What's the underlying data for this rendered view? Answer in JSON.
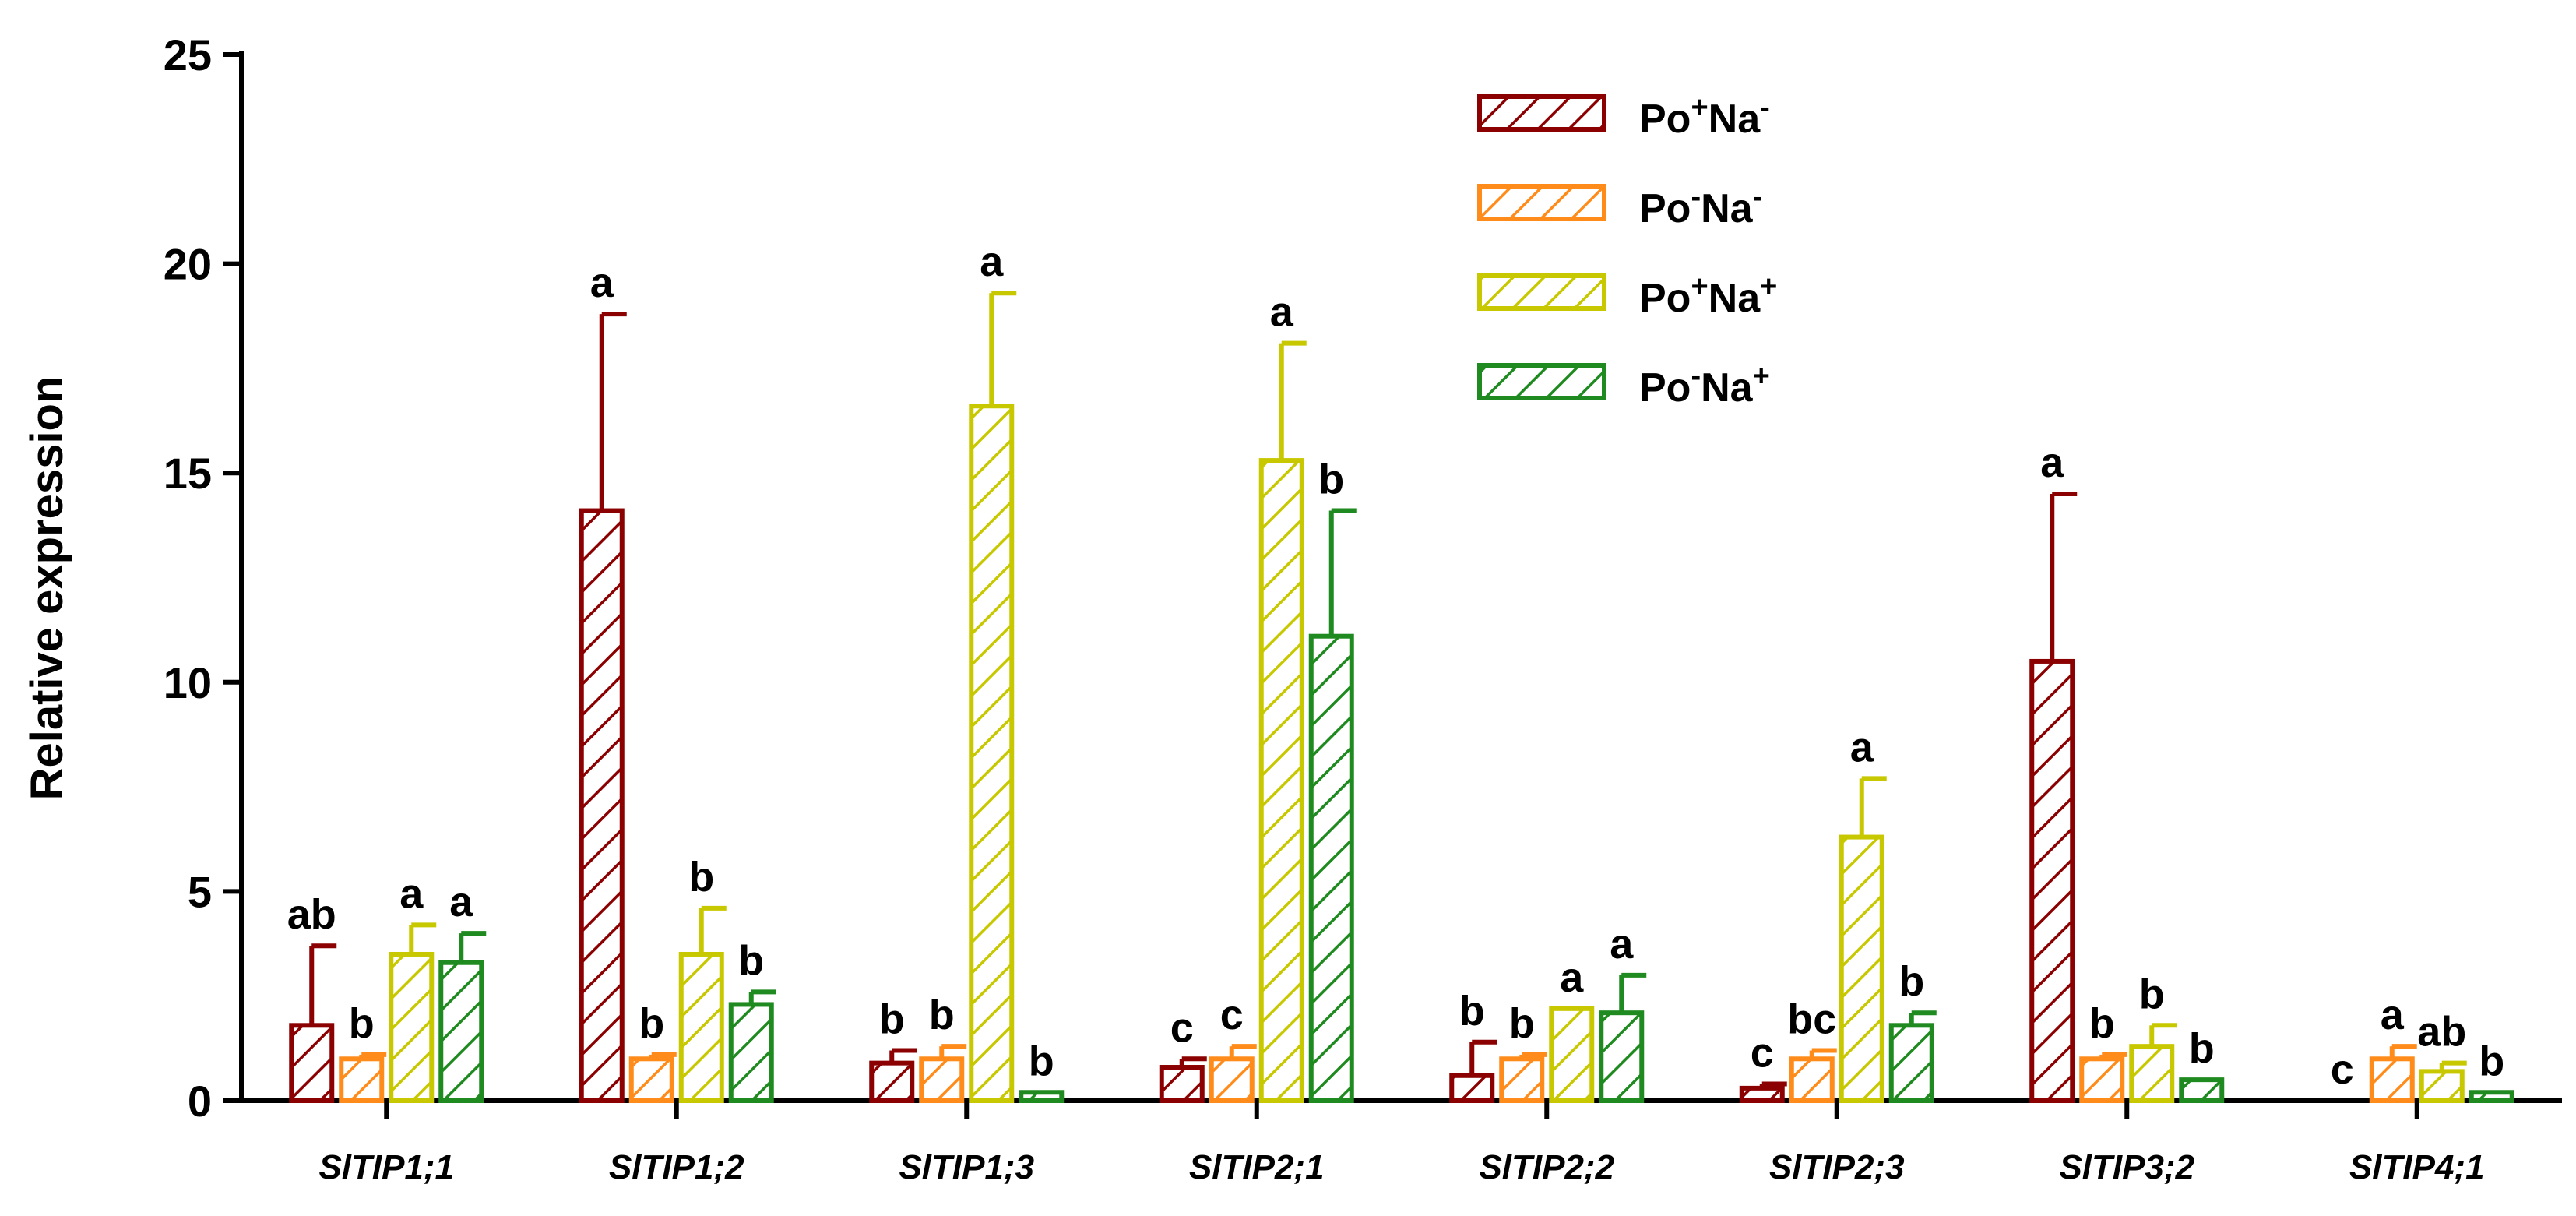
{
  "chart_data": {
    "type": "bar",
    "title": "",
    "xlabel": "",
    "ylabel": "Relative expression",
    "ylim": [
      0,
      25
    ],
    "yticks": [
      0,
      5,
      10,
      15,
      20,
      25
    ],
    "grid": false,
    "legend_position": "top-center",
    "categories": [
      "SlTIP1;1",
      "SlTIP1;2",
      "SlTIP1;3",
      "SlTIP2;1",
      "SlTIP2;2",
      "SlTIP2;3",
      "SlTIP3;2",
      "SlTIP4;1"
    ],
    "series": [
      {
        "name": "Po+Na-",
        "label_base": "Po",
        "label_sup1": "+",
        "label_mid": "Na",
        "label_sup2": "-",
        "color": "#8B0000",
        "values": [
          1.8,
          14.1,
          0.9,
          0.8,
          0.6,
          0.3,
          10.5,
          0.0
        ],
        "errors": [
          1.9,
          4.7,
          0.3,
          0.2,
          0.8,
          0.1,
          4.0,
          0.0
        ],
        "letters": [
          "ab",
          "a",
          "b",
          "c",
          "b",
          "c",
          "a",
          "c"
        ]
      },
      {
        "name": "Po-Na-",
        "label_base": "Po",
        "label_sup1": "-",
        "label_mid": "Na",
        "label_sup2": "-",
        "color": "#FF8C1A",
        "values": [
          1.0,
          1.0,
          1.0,
          1.0,
          1.0,
          1.0,
          1.0,
          1.0
        ],
        "errors": [
          0.1,
          0.1,
          0.3,
          0.3,
          0.1,
          0.2,
          0.1,
          0.3
        ],
        "letters": [
          "b",
          "b",
          "b",
          "c",
          "b",
          "bc",
          "b",
          "a"
        ]
      },
      {
        "name": "Po+Na+",
        "label_base": "Po",
        "label_sup1": "+",
        "label_mid": "Na",
        "label_sup2": "+",
        "color": "#C8C800",
        "values": [
          3.5,
          3.5,
          16.6,
          15.3,
          2.2,
          6.3,
          1.3,
          0.7
        ],
        "errors": [
          0.7,
          1.1,
          2.7,
          2.8,
          0.0,
          1.4,
          0.5,
          0.2
        ],
        "letters": [
          "a",
          "b",
          "a",
          "a",
          "a",
          "a",
          "b",
          "ab"
        ]
      },
      {
        "name": "Po-Na+",
        "label_base": "Po",
        "label_sup1": "-",
        "label_mid": "Na",
        "label_sup2": "+",
        "color": "#1F8A1F",
        "values": [
          3.3,
          2.3,
          0.2,
          11.1,
          2.1,
          1.8,
          0.5,
          0.2
        ],
        "errors": [
          0.7,
          0.3,
          0.0,
          3.0,
          0.9,
          0.3,
          0.0,
          0.0
        ],
        "letters": [
          "a",
          "b",
          "b",
          "b",
          "a",
          "b",
          "b",
          "b"
        ]
      }
    ]
  }
}
